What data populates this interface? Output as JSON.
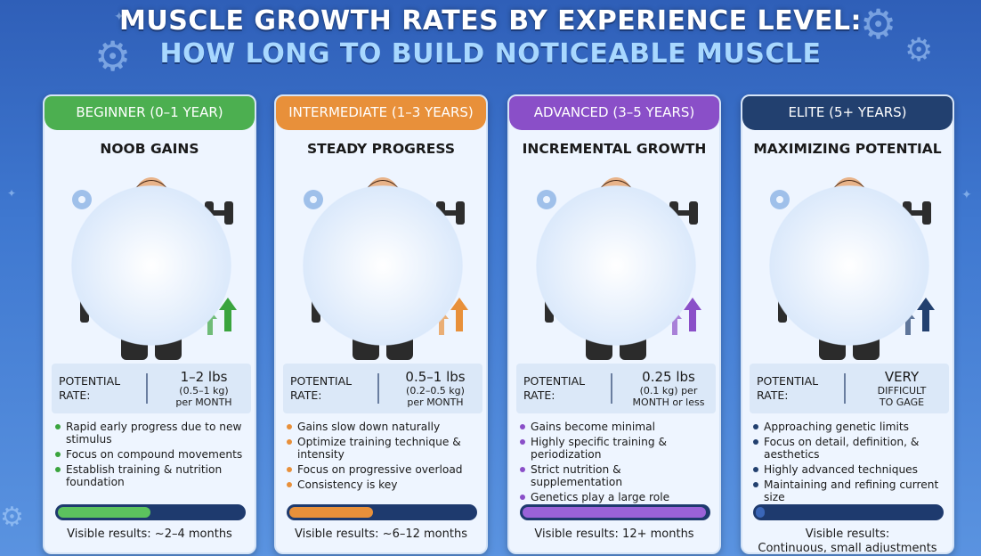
{
  "header": {
    "title_line1": "MUSCLE GROWTH RATES BY EXPERIENCE LEVEL:",
    "title_line2": "HOW LONG TO BUILD NOTICEABLE MUSCLE"
  },
  "colors": {
    "background": "#3f78d0",
    "title_line2": "#a8d8ff"
  },
  "cards": [
    {
      "tag": "BEGINNER (0–1 YEAR)",
      "tag_color": "#4caf50",
      "subtitle": "NOOB GAINS",
      "shirt_color": "#3d8fdc",
      "rate_label_1": "POTENTIAL",
      "rate_label_2": "RATE:",
      "rate_big": "1–2 lbs",
      "rate_small_1": "(0.5–1 kg)",
      "rate_small_2": "per MONTH",
      "bullet_color": "#3aa43e",
      "bullets": [
        "Rapid early progress due to new stimulus",
        "Focus on compound movements",
        "Establish training & nutrition foundation"
      ],
      "bar_color": "#5cc25e",
      "progress": 0.5,
      "visible": "Visible results: ~2–4 months",
      "visible_2": ""
    },
    {
      "tag": "INTERMEDIATE (1–3 YEARS)",
      "tag_color": "#e8903a",
      "subtitle": "STEADY PROGRESS",
      "shirt_color": "#d9462e",
      "rate_label_1": "POTENTIAL",
      "rate_label_2": "RATE:",
      "rate_big": "0.5–1 lbs",
      "rate_small_1": "(0.2–0.5 kg)",
      "rate_small_2": "per MONTH",
      "bullet_color": "#e8903a",
      "bullets": [
        "Gains slow down naturally",
        "Optimize training technique & intensity",
        "Focus on progressive overload",
        "Consistency is key"
      ],
      "bar_color": "#e8903a",
      "progress": 0.45,
      "visible": "Visible results: ~6–12 months",
      "visible_2": ""
    },
    {
      "tag": "ADVANCED (3–5 YEARS)",
      "tag_color": "#8a4fc8",
      "subtitle": "INCREMENTAL GROWTH",
      "shirt_color": "#4a4a4a",
      "rate_label_1": "POTENTIAL",
      "rate_label_2": "RATE:",
      "rate_big": "0.25 lbs",
      "rate_small_1": "(0.1 kg) per",
      "rate_small_2": "MONTH or less",
      "bullet_color": "#8a4fc8",
      "bullets": [
        "Gains become minimal",
        "Highly specific training & periodization",
        "Strict nutrition & supplementation",
        "Genetics play a large role"
      ],
      "bar_color": "#9a62d8",
      "progress": 0.99,
      "visible": "Visible results: 12+ months",
      "visible_2": ""
    },
    {
      "tag": "ELITE (5+ YEARS)",
      "tag_color": "#22406f",
      "subtitle": "MAXIMIZING POTENTIAL",
      "shirt_color": "#2e63c4",
      "rate_label_1": "POTENTIAL",
      "rate_label_2": "RATE:",
      "rate_big": "VERY",
      "rate_small_1": "DIFFICULT",
      "rate_small_2": "TO GAGE",
      "bullet_color": "#22406f",
      "bullets": [
        "Approaching genetic limits",
        "Focus on detail, definition, & aesthetics",
        "Highly advanced techniques",
        "Maintaining and refining current size"
      ],
      "bar_color": "#3a66b8",
      "progress": 0.05,
      "visible": "Visible results:",
      "visible_2": "Continuous, small adjustments"
    }
  ]
}
